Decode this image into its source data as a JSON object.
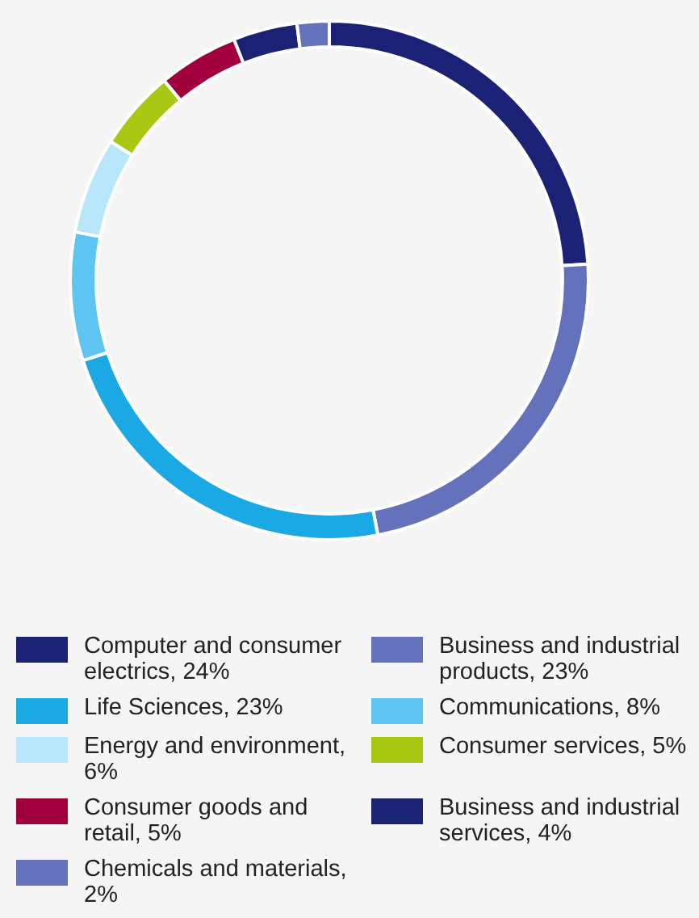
{
  "chart_data": {
    "type": "donut",
    "categories": [
      "Computer and consumer electrics, 24%",
      "Business and industrial products, 23%",
      "Life Sciences, 23%",
      "Communications, 8%",
      "Energy and environment, 6%",
      "Consumer services, 5%",
      "Consumer goods and retail, 5%",
      "Business and industrial services, 4%",
      "Chemicals and materials, 2%"
    ],
    "values": [
      24,
      23,
      23,
      8,
      6,
      5,
      5,
      4,
      2
    ],
    "colors": [
      "#1b2175",
      "#6472bb",
      "#1aa9e4",
      "#5ec4f2",
      "#b8e6fb",
      "#a8c813",
      "#a0003c",
      "#1b2175",
      "#6472bb"
    ],
    "legend": "bottom"
  }
}
